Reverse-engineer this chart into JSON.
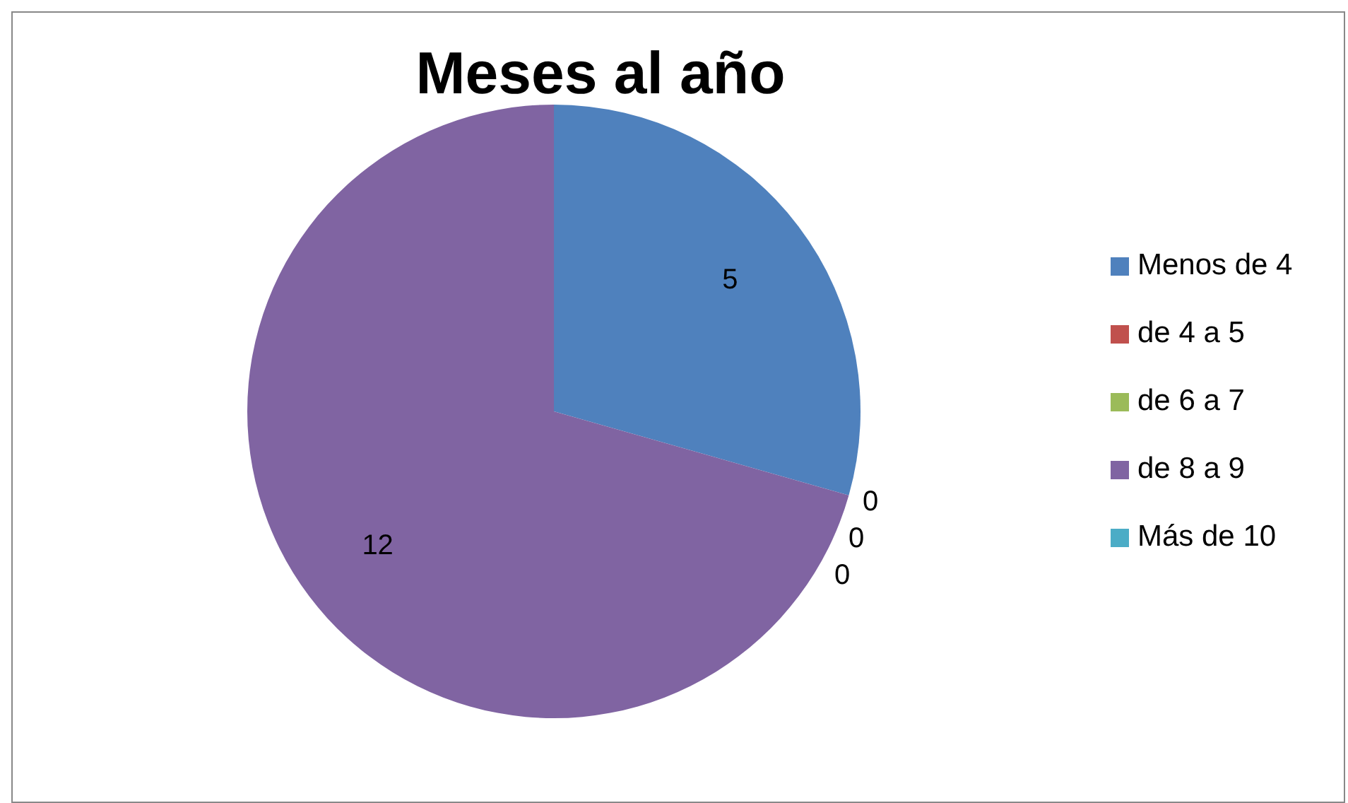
{
  "chart_data": {
    "type": "pie",
    "title": "Meses al año",
    "categories": [
      "Menos de 4",
      "de 4 a 5",
      "de 6 a 7",
      "de 8 a 9",
      "Más de 10"
    ],
    "values": [
      5,
      0,
      0,
      12,
      0
    ],
    "colors": [
      "#4f81bd",
      "#c0504d",
      "#9bbb59",
      "#8064a2",
      "#4bacc6"
    ],
    "value_labels": [
      "5",
      "0",
      "0",
      "12",
      "0"
    ],
    "legend": "right"
  }
}
